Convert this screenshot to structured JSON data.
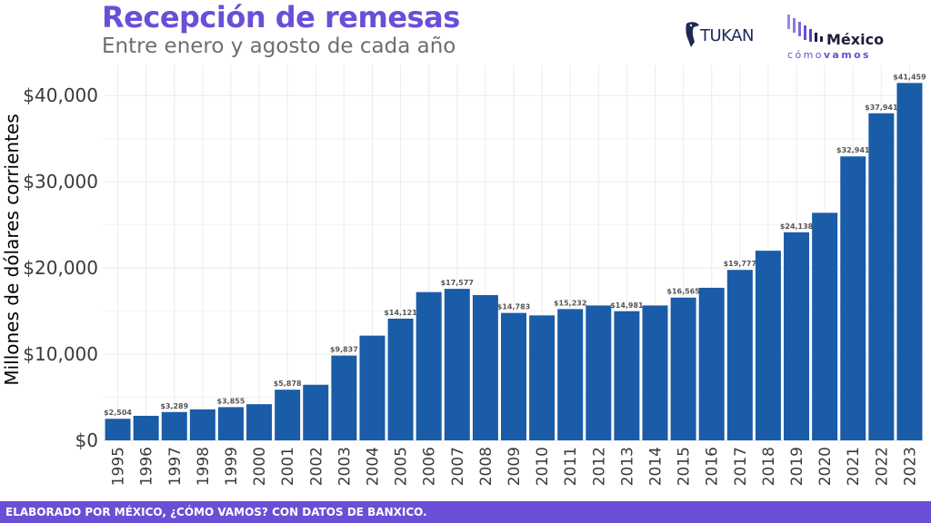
{
  "header": {
    "title": "Recepción de remesas",
    "subtitle": "Entre enero y agosto de cada año"
  },
  "logos": {
    "tukan": {
      "text": "TUKAN",
      "icon": "toucan-icon"
    },
    "mexico_como_vamos": {
      "name": "México",
      "tagline_light": "cómo",
      "tagline_bold": "vamos"
    }
  },
  "footer": {
    "text": "ELABORADO POR MÉXICO, ¿CÓMO VAMOS? CON DATOS DE BANXICO."
  },
  "colors": {
    "accent": "#6a4fd6",
    "bar": "#1a5ca8",
    "grid": "#ebebeb",
    "label": "#555555"
  },
  "chart_data": {
    "type": "bar",
    "title": "Recepción de remesas",
    "subtitle": "Entre enero y agosto de cada año",
    "xlabel": "",
    "ylabel": "Millones de dólares corrientes",
    "categories": [
      "1995",
      "1996",
      "1997",
      "1998",
      "1999",
      "2000",
      "2001",
      "2002",
      "2003",
      "2004",
      "2005",
      "2006",
      "2007",
      "2008",
      "2009",
      "2010",
      "2011",
      "2012",
      "2013",
      "2014",
      "2015",
      "2016",
      "2017",
      "2018",
      "2019",
      "2020",
      "2021",
      "2022",
      "2023"
    ],
    "values": [
      2504,
      2850,
      3289,
      3600,
      3855,
      4200,
      5878,
      6450,
      9837,
      12150,
      14121,
      17200,
      17577,
      16850,
      14783,
      14500,
      15232,
      15650,
      14981,
      15650,
      16565,
      17700,
      19777,
      22000,
      24138,
      26400,
      32941,
      37941,
      41459
    ],
    "data_labels": {
      "1995": "$2,504",
      "1997": "$3,289",
      "1999": "$3,855",
      "2001": "$5,878",
      "2003": "$9,837",
      "2005": "$14,121",
      "2007": "$17,577",
      "2009": "$14,783",
      "2011": "$15,232",
      "2013": "$14,981",
      "2015": "$16,565",
      "2017": "$19,777",
      "2019": "$24,138",
      "2021": "$32,941",
      "2022": "$37,941",
      "2023": "$41,459"
    },
    "yticks": [
      0,
      10000,
      20000,
      30000,
      40000
    ],
    "ytick_labels": [
      "$0",
      "$10,000",
      "$20,000",
      "$30,000",
      "$40,000"
    ],
    "ylim": [
      0,
      43500
    ],
    "grid": true,
    "legend": "none"
  }
}
